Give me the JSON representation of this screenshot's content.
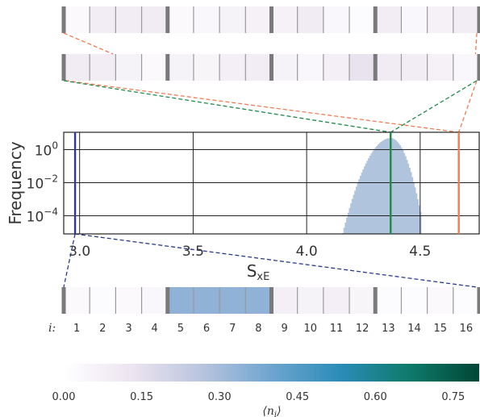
{
  "chart_data": {
    "type": "bar",
    "xlabel": "S",
    "xlabel_sub": "xE",
    "ylabel": "Frequency",
    "x_ticks": [
      "3.0",
      "3.5",
      "4.0",
      "4.5"
    ],
    "x_tick_values": [
      3.0,
      3.5,
      4.0,
      4.5
    ],
    "xlim": [
      2.93,
      4.76
    ],
    "y_scale": "log",
    "y_ticks": [
      {
        "base": "10",
        "exp": "0"
      },
      {
        "base": "10",
        "exp": "−2"
      },
      {
        "base": "10",
        "exp": "−4"
      }
    ],
    "y_tick_exponents": [
      0,
      -2,
      -4
    ],
    "ylim_log10": [
      -5.1,
      1.05
    ],
    "grid": true,
    "histogram": {
      "color": "#b0c4de",
      "min": 4.15,
      "max": 4.5,
      "peak": 4.37,
      "peak_log10": 0.7
    },
    "markers": [
      {
        "x": 2.98,
        "color": "#2b3a8c"
      },
      {
        "x": 4.37,
        "color": "#1f8a4c"
      },
      {
        "x": 4.67,
        "color": "#f07c52"
      }
    ],
    "strips": {
      "top1": [
        0.03,
        0.09,
        0.09,
        0.1,
        0.03,
        0.04,
        0.06,
        0.07,
        0.07,
        0.1,
        0.04,
        0.02,
        0.09,
        0.04,
        0.07,
        0.09
      ],
      "top2": [
        0.1,
        0.09,
        0.06,
        0.03,
        0.06,
        0.05,
        0.08,
        0.09,
        0.06,
        0.04,
        0.08,
        0.14,
        0.1,
        0.09,
        0.07,
        0.04
      ],
      "bottom": [
        0.03,
        0.02,
        0.03,
        0.04,
        0.34,
        0.34,
        0.34,
        0.34,
        0.08,
        0.06,
        0.08,
        0.05,
        0.02,
        0.02,
        0.03,
        0.02
      ]
    },
    "site_label": "i:",
    "sites": [
      "1",
      "2",
      "3",
      "4",
      "5",
      "6",
      "7",
      "8",
      "9",
      "10",
      "11",
      "12",
      "13",
      "14",
      "15",
      "16"
    ],
    "colorbar": {
      "ticks": [
        "0.00",
        "0.15",
        "0.30",
        "0.45",
        "0.60",
        "0.75"
      ],
      "tick_values": [
        0.0,
        0.15,
        0.3,
        0.45,
        0.6,
        0.75
      ],
      "range": [
        0,
        0.8
      ],
      "label": "⟨n",
      "label_sub": "i",
      "label_end": "⟩",
      "stops": [
        "#ffffff",
        "#ece4f0",
        "#b8c4de",
        "#6ea4cf",
        "#2a8cb8",
        "#0e7a6a",
        "#014636"
      ]
    }
  }
}
